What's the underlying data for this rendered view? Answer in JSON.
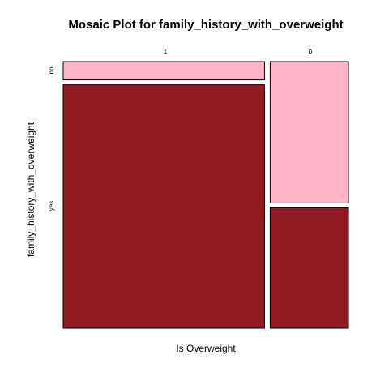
{
  "chart_data": {
    "type": "mosaic",
    "title": "Mosaic Plot for family_history_with_overweight",
    "xlabel": "Is Overweight",
    "ylabel": "family_history_with_overweight",
    "x_categories": [
      "1",
      "0"
    ],
    "y_categories": [
      "no",
      "yes"
    ],
    "column_proportions": [
      0.72,
      0.28
    ],
    "conditional_proportions": [
      {
        "x": "1",
        "no": 0.07,
        "yes": 0.93
      },
      {
        "x": "0",
        "no": 0.54,
        "yes": 0.46
      }
    ],
    "colors": {
      "no": "#ffb3c6",
      "yes": "#921a23",
      "border": "#000000"
    }
  }
}
